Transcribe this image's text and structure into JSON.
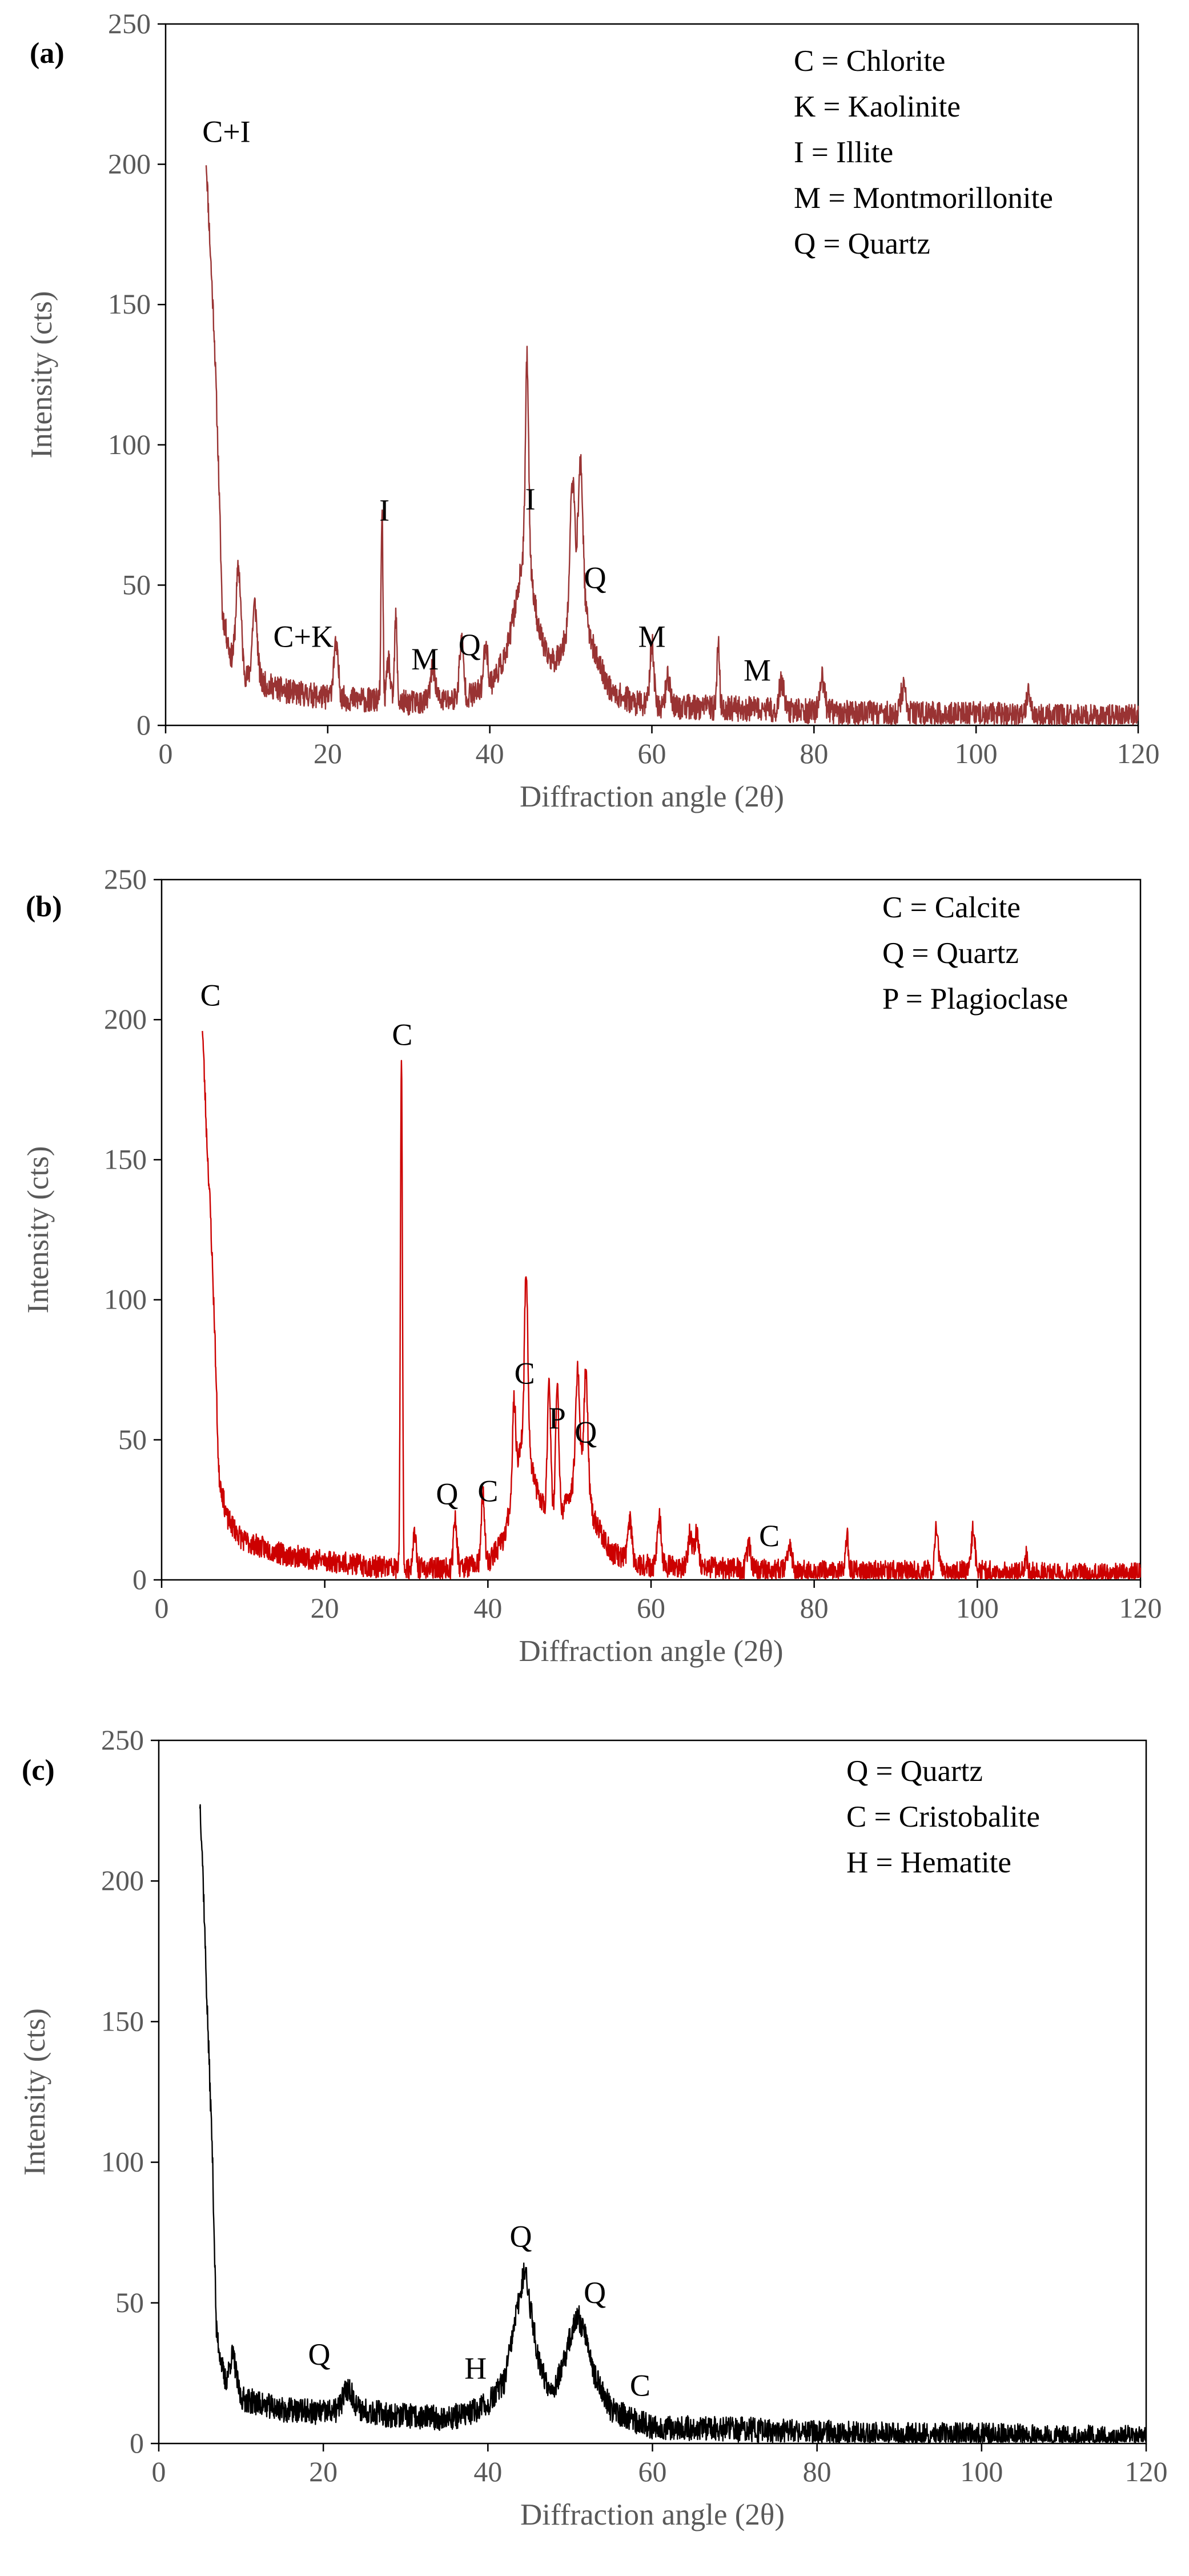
{
  "chart_data": [
    {
      "type": "line",
      "panel_label": "(a)",
      "xlabel": "Diffraction angle (2θ)",
      "ylabel": "Intensity (cts)",
      "xlim": [
        0,
        120
      ],
      "ylim": [
        0,
        250
      ],
      "xticks": [
        0,
        20,
        40,
        60,
        80,
        100,
        120
      ],
      "yticks": [
        0,
        50,
        100,
        150,
        200,
        250
      ],
      "color": "#993333",
      "legend": [
        "C = Chlorite",
        "K = Kaolinite",
        "I = Illite",
        "M = Montmorillonite",
        "Q = Quartz"
      ],
      "annotations": [
        {
          "text": "C+I",
          "x": 7.5,
          "y": 208
        },
        {
          "text": "C+K",
          "x": 17,
          "y": 28
        },
        {
          "text": "M",
          "x": 32,
          "y": 20
        },
        {
          "text": "Q",
          "x": 37.5,
          "y": 25
        },
        {
          "text": "I",
          "x": 27,
          "y": 73
        },
        {
          "text": "I",
          "x": 45,
          "y": 77
        },
        {
          "text": "Q",
          "x": 53,
          "y": 49
        },
        {
          "text": "M",
          "x": 60,
          "y": 28
        },
        {
          "text": "M",
          "x": 73,
          "y": 16
        }
      ],
      "baseline": [
        [
          5,
          202
        ],
        [
          5.5,
          170
        ],
        [
          6,
          140
        ],
        [
          6.5,
          95
        ],
        [
          7,
          40
        ],
        [
          8,
          25
        ],
        [
          10,
          17
        ],
        [
          15,
          12
        ],
        [
          20,
          10
        ],
        [
          25,
          9
        ],
        [
          30,
          8
        ],
        [
          35,
          9
        ],
        [
          38,
          11
        ],
        [
          40,
          14
        ],
        [
          42,
          25
        ],
        [
          43,
          40
        ],
        [
          44,
          58
        ],
        [
          44.5,
          62
        ],
        [
          45,
          55
        ],
        [
          46,
          35
        ],
        [
          47,
          25
        ],
        [
          48,
          23
        ],
        [
          49,
          28
        ],
        [
          50,
          38
        ],
        [
          51,
          42
        ],
        [
          52,
          37
        ],
        [
          53,
          25
        ],
        [
          55,
          12
        ],
        [
          58,
          8
        ],
        [
          60,
          7
        ],
        [
          70,
          6
        ],
        [
          80,
          5
        ],
        [
          90,
          4
        ],
        [
          100,
          4
        ],
        [
          110,
          3
        ],
        [
          120,
          3
        ]
      ],
      "peaks": [
        [
          9,
          35,
          0.3
        ],
        [
          11,
          27,
          0.3
        ],
        [
          21,
          18,
          0.3
        ],
        [
          26.7,
          67,
          0.12
        ],
        [
          27.5,
          15,
          0.2
        ],
        [
          28.4,
          30,
          0.15
        ],
        [
          33,
          12,
          0.3
        ],
        [
          36.5,
          20,
          0.25
        ],
        [
          39.5,
          16,
          0.25
        ],
        [
          44.6,
          70,
          0.2
        ],
        [
          50.2,
          48,
          0.3
        ],
        [
          51.2,
          52,
          0.3
        ],
        [
          60,
          22,
          0.25
        ],
        [
          62,
          10,
          0.3
        ],
        [
          68.2,
          24,
          0.15
        ],
        [
          76,
          10,
          0.3
        ],
        [
          81,
          12,
          0.3
        ],
        [
          91,
          9,
          0.3
        ],
        [
          106.5,
          9,
          0.25
        ]
      ],
      "noise": 4.5,
      "seed": 11
    },
    {
      "type": "line",
      "panel_label": "(b)",
      "xlabel": "Diffraction angle (2θ)",
      "ylabel": "Intensity (cts)",
      "xlim": [
        0,
        120
      ],
      "ylim": [
        0,
        250
      ],
      "xticks": [
        0,
        20,
        40,
        60,
        80,
        100,
        120
      ],
      "yticks": [
        0,
        50,
        100,
        150,
        200,
        250
      ],
      "color": "#cc0000",
      "legend": [
        "C = Calcite",
        "Q = Quartz",
        "P = Plagioclase"
      ],
      "annotations": [
        {
          "text": "C",
          "x": 6,
          "y": 205
        },
        {
          "text": "C",
          "x": 29.5,
          "y": 191
        },
        {
          "text": "Q",
          "x": 35,
          "y": 27
        },
        {
          "text": "C",
          "x": 40,
          "y": 28
        },
        {
          "text": "C",
          "x": 44.5,
          "y": 70
        },
        {
          "text": "P",
          "x": 48.5,
          "y": 54
        },
        {
          "text": "Q",
          "x": 52,
          "y": 49
        },
        {
          "text": "C",
          "x": 74.5,
          "y": 12
        }
      ],
      "baseline": [
        [
          5,
          198
        ],
        [
          5.5,
          160
        ],
        [
          6,
          130
        ],
        [
          6.5,
          90
        ],
        [
          7,
          38
        ],
        [
          8,
          22
        ],
        [
          10,
          14
        ],
        [
          15,
          9
        ],
        [
          20,
          7
        ],
        [
          25,
          5
        ],
        [
          30,
          4
        ],
        [
          35,
          4
        ],
        [
          40,
          6
        ],
        [
          42,
          15
        ],
        [
          43,
          30
        ],
        [
          44,
          48
        ],
        [
          44.5,
          52
        ],
        [
          45,
          45
        ],
        [
          46,
          32
        ],
        [
          47,
          25
        ],
        [
          48,
          23
        ],
        [
          49,
          24
        ],
        [
          50,
          30
        ],
        [
          51,
          36
        ],
        [
          52,
          32
        ],
        [
          53,
          22
        ],
        [
          55,
          10
        ],
        [
          58,
          6
        ],
        [
          60,
          5
        ],
        [
          70,
          4
        ],
        [
          80,
          3
        ],
        [
          90,
          3
        ],
        [
          100,
          3
        ],
        [
          110,
          2
        ],
        [
          120,
          2
        ]
      ],
      "peaks": [
        [
          29.4,
          185,
          0.12
        ],
        [
          31,
          12,
          0.2
        ],
        [
          36,
          18,
          0.2
        ],
        [
          39.4,
          25,
          0.2
        ],
        [
          43.2,
          30,
          0.2
        ],
        [
          44.7,
          62,
          0.2
        ],
        [
          47.5,
          48,
          0.2
        ],
        [
          48.5,
          45,
          0.2
        ],
        [
          51,
          40,
          0.25
        ],
        [
          52,
          42,
          0.25
        ],
        [
          57.4,
          15,
          0.25
        ],
        [
          61,
          17,
          0.25
        ],
        [
          64.8,
          12,
          0.25
        ],
        [
          65.6,
          12,
          0.25
        ],
        [
          72,
          8,
          0.25
        ],
        [
          77,
          9,
          0.25
        ],
        [
          84,
          13,
          0.2
        ],
        [
          95,
          16,
          0.2
        ],
        [
          99.5,
          16,
          0.2
        ],
        [
          106,
          6,
          0.2
        ]
      ],
      "noise": 4,
      "seed": 23
    },
    {
      "type": "line",
      "panel_label": "(c)",
      "xlabel": "Diffraction angle (2θ)",
      "ylabel": "Intensity (cts)",
      "xlim": [
        0,
        120
      ],
      "ylim": [
        0,
        250
      ],
      "xticks": [
        0,
        20,
        40,
        60,
        80,
        100,
        120
      ],
      "yticks": [
        0,
        50,
        100,
        150,
        200,
        250
      ],
      "color": "#000000",
      "legend": [
        "Q = Quartz",
        "C = Cristobalite",
        "H = Hematite"
      ],
      "annotations": [
        {
          "text": "Q",
          "x": 19.5,
          "y": 28
        },
        {
          "text": "H",
          "x": 38.5,
          "y": 23
        },
        {
          "text": "Q",
          "x": 44,
          "y": 70
        },
        {
          "text": "Q",
          "x": 53,
          "y": 50
        },
        {
          "text": "C",
          "x": 58.5,
          "y": 17
        }
      ],
      "baseline": [
        [
          5,
          220
        ],
        [
          5.5,
          185
        ],
        [
          6,
          145
        ],
        [
          6.5,
          105
        ],
        [
          7,
          40
        ],
        [
          8,
          22
        ],
        [
          10,
          16
        ],
        [
          15,
          12
        ],
        [
          20,
          11
        ],
        [
          25,
          12
        ],
        [
          28,
          10
        ],
        [
          35,
          9
        ],
        [
          38,
          11
        ],
        [
          40,
          14
        ],
        [
          42,
          22
        ],
        [
          43,
          38
        ],
        [
          44,
          55
        ],
        [
          44.5,
          62
        ],
        [
          45,
          52
        ],
        [
          46,
          32
        ],
        [
          47,
          22
        ],
        [
          48,
          20
        ],
        [
          49,
          26
        ],
        [
          50,
          38
        ],
        [
          51,
          45
        ],
        [
          52,
          38
        ],
        [
          53,
          24
        ],
        [
          55,
          12
        ],
        [
          58,
          8
        ],
        [
          60,
          6
        ],
        [
          70,
          5
        ],
        [
          80,
          4
        ],
        [
          90,
          3
        ],
        [
          100,
          3
        ],
        [
          110,
          2
        ],
        [
          120,
          2
        ]
      ],
      "peaks": [
        [
          5.2,
          10,
          0.3
        ],
        [
          9,
          12,
          0.4
        ],
        [
          23,
          8,
          0.6
        ]
      ],
      "noise": 4.5,
      "seed": 37
    }
  ]
}
